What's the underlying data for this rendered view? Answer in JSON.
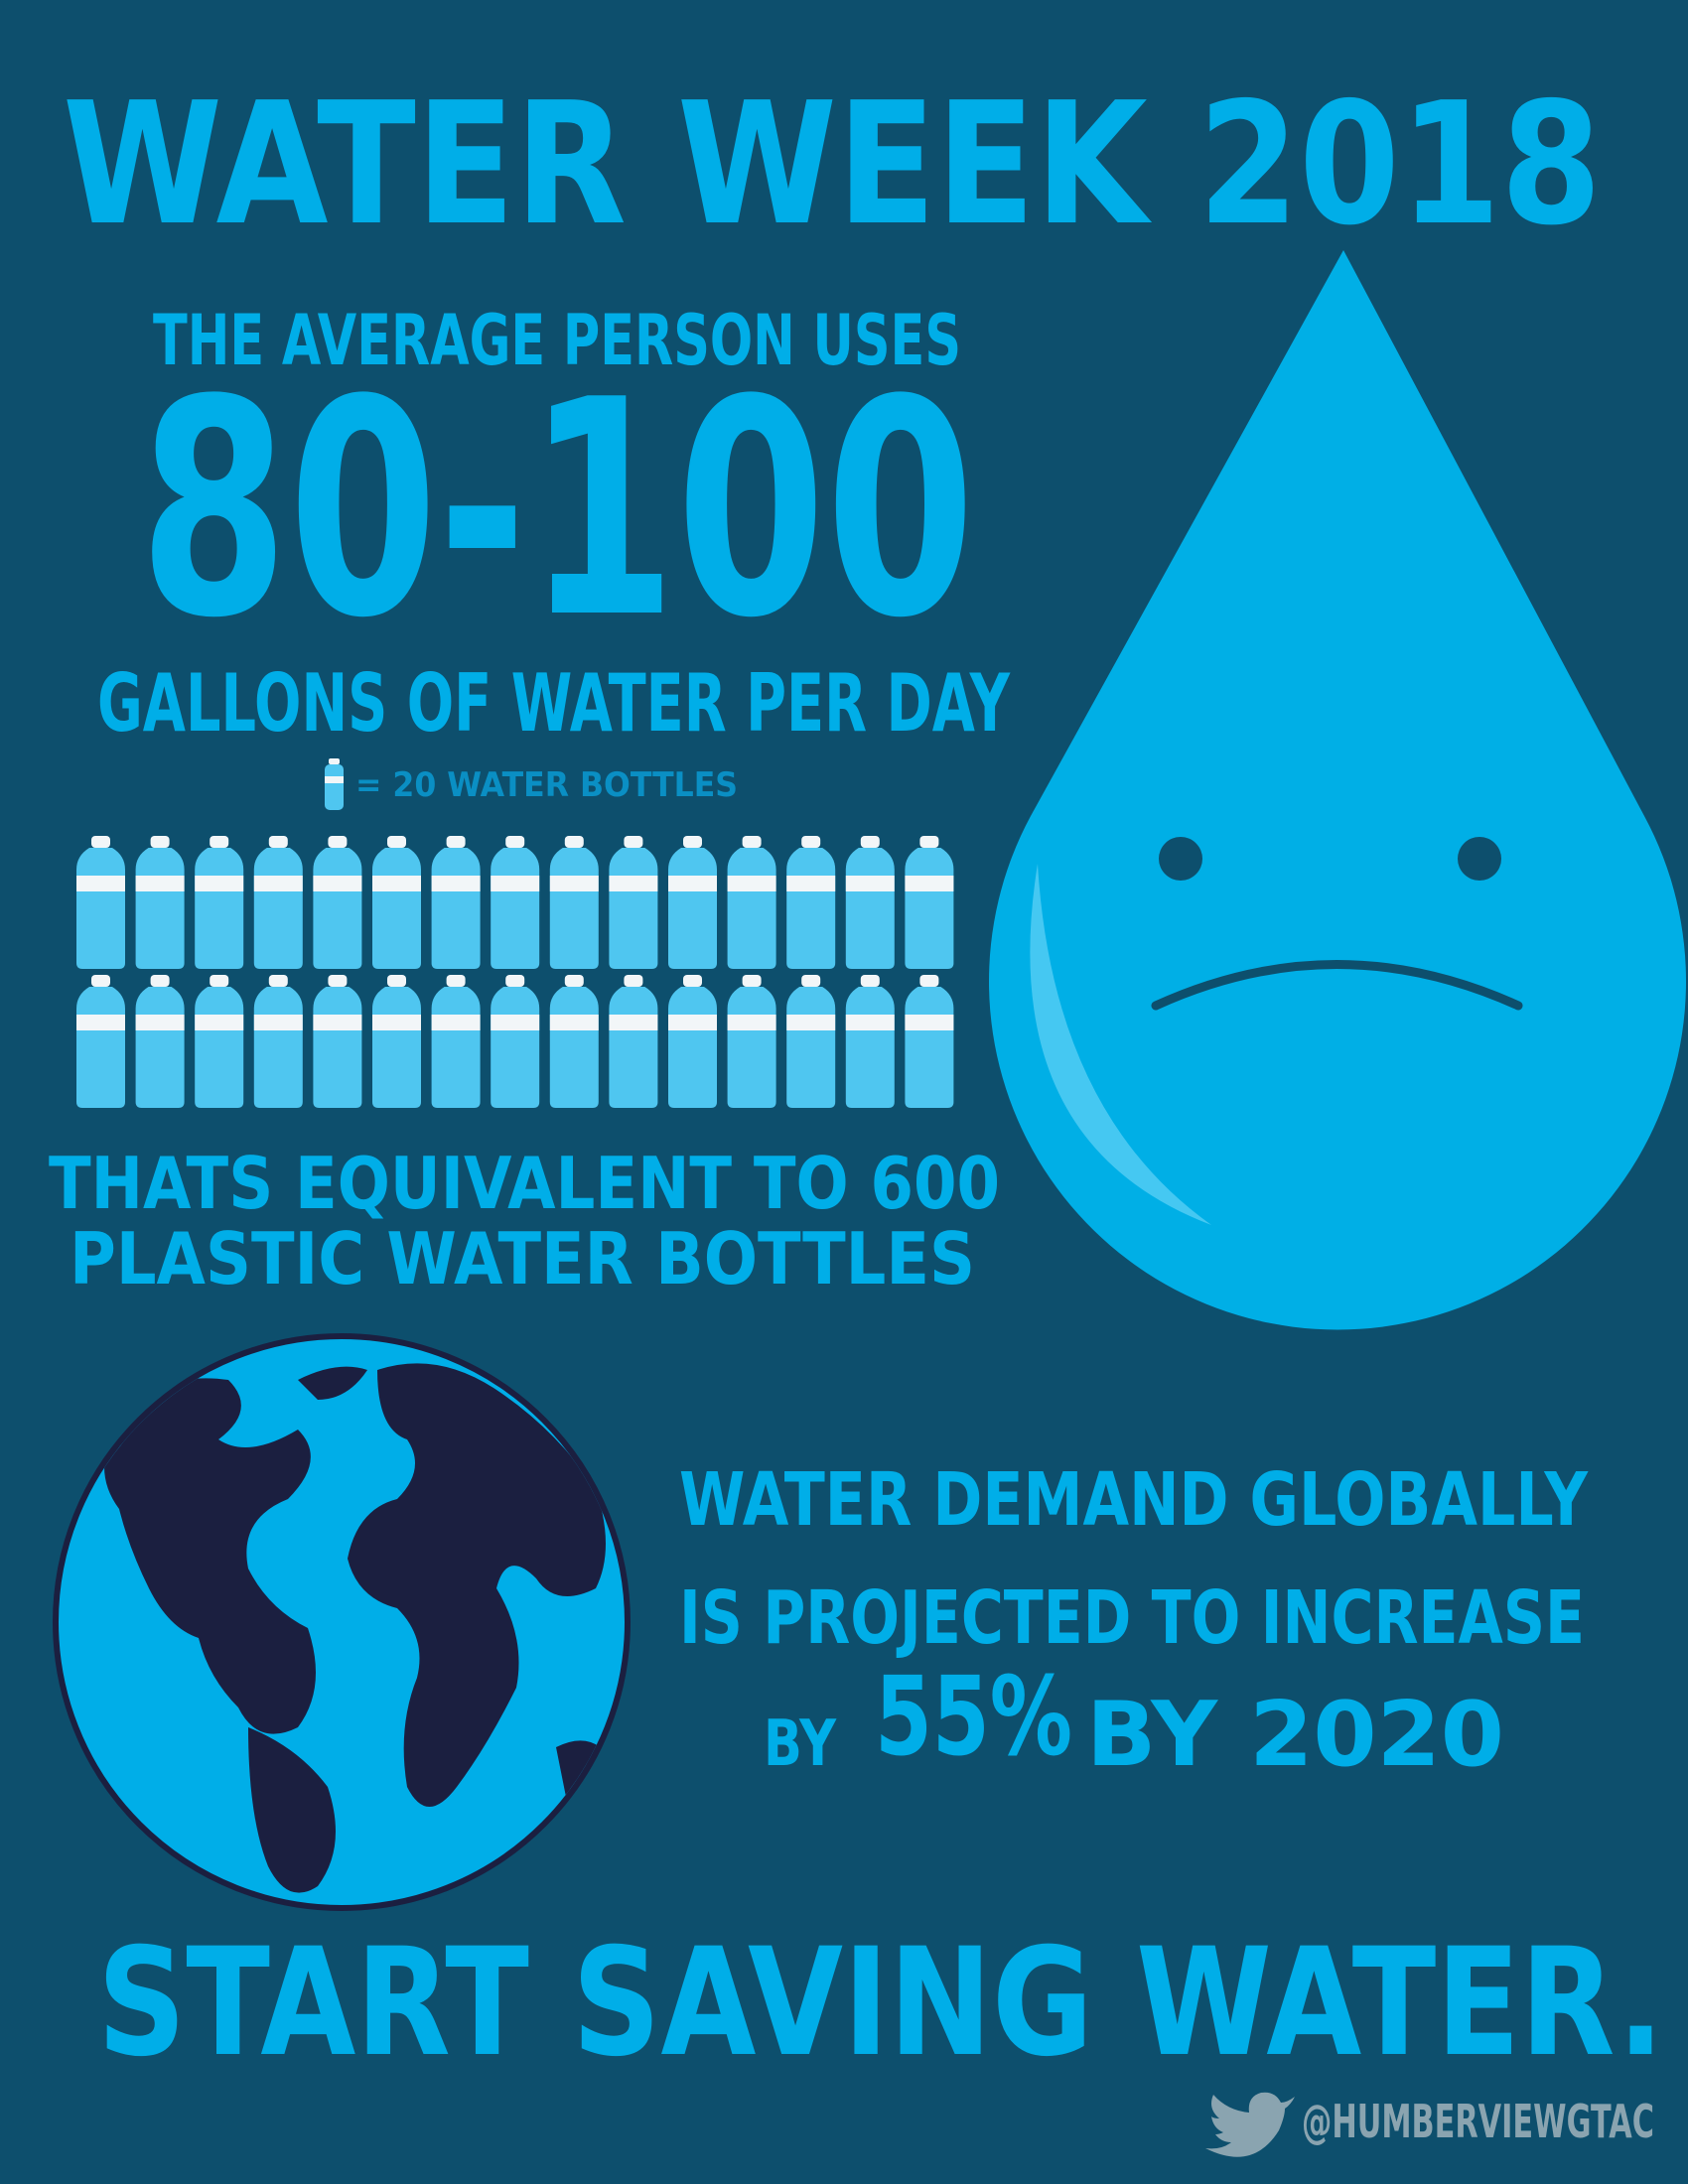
{
  "title": "WATER WEEK 2018",
  "usage": {
    "intro": "THE AVERAGE PERSON USES",
    "amount": "80-100",
    "unit": "GALLONS OF WATER PER DAY",
    "legend": "= 20 WATER BOTTLES",
    "equivalent": [
      "THATS EQUIVALENT TO 600",
      "PLASTIC WATER BOTTLES"
    ]
  },
  "demand": {
    "lines": [
      "WATER DEMAND GLOBALLY",
      "IS PROJECTED TO INCREASE"
    ],
    "prefix": "BY",
    "percent": "55%",
    "suffix": "BY 2020"
  },
  "call_to_action": "START SAVING WATER.",
  "handle": "@HUMBERVIEWGTAC"
}
